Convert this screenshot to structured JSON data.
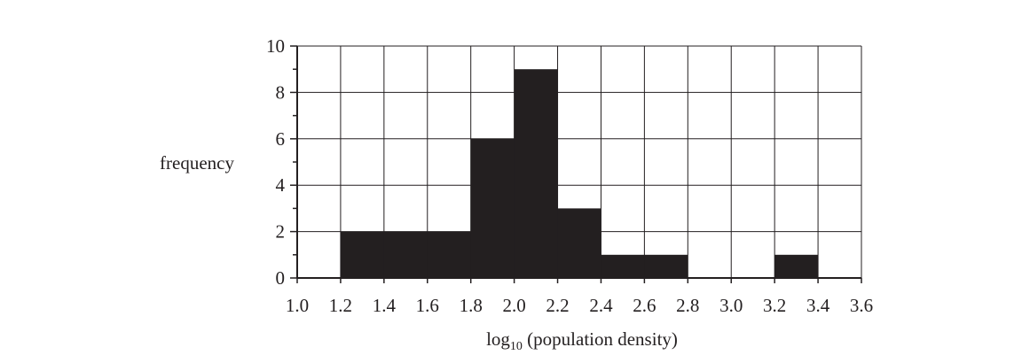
{
  "chart_data": {
    "type": "bar",
    "xlabel": "log",
    "xlabel_subscript": "10",
    "xlabel_rest": " (population density)",
    "ylabel": "frequency",
    "xlim": [
      1.0,
      3.6
    ],
    "ylim": [
      0,
      10
    ],
    "xticks": [
      "1.0",
      "1.2",
      "1.4",
      "1.6",
      "1.8",
      "2.0",
      "2.2",
      "2.4",
      "2.6",
      "2.8",
      "3.0",
      "3.2",
      "3.4",
      "3.6"
    ],
    "yticks": [
      "0",
      "2",
      "4",
      "6",
      "8",
      "10"
    ],
    "bins": [
      {
        "from": 1.2,
        "to": 1.4,
        "value": 2
      },
      {
        "from": 1.4,
        "to": 1.6,
        "value": 2
      },
      {
        "from": 1.6,
        "to": 1.8,
        "value": 2
      },
      {
        "from": 1.8,
        "to": 2.0,
        "value": 6
      },
      {
        "from": 2.0,
        "to": 2.2,
        "value": 9
      },
      {
        "from": 2.2,
        "to": 2.4,
        "value": 3
      },
      {
        "from": 2.4,
        "to": 2.6,
        "value": 1
      },
      {
        "from": 2.6,
        "to": 2.8,
        "value": 1
      },
      {
        "from": 2.8,
        "to": 3.0,
        "value": 0
      },
      {
        "from": 3.0,
        "to": 3.2,
        "value": 0
      },
      {
        "from": 3.2,
        "to": 3.4,
        "value": 1
      },
      {
        "from": 3.4,
        "to": 3.6,
        "value": 0
      }
    ],
    "grid": true,
    "bar_color": "#231f20"
  }
}
